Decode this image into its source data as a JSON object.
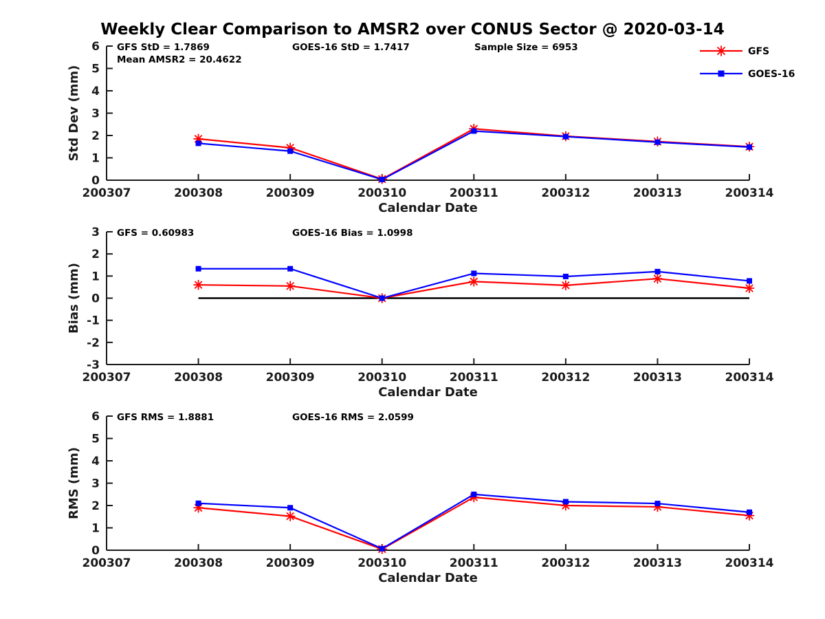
{
  "title": "Weekly Clear Comparison to AMSR2 over CONUS Sector @ 2020-03-14",
  "x_axis_label": "Calendar Date",
  "x_tick_labels": [
    "200307",
    "200308",
    "200309",
    "200310",
    "200311",
    "200312",
    "200313",
    "200314"
  ],
  "colors": {
    "gfs": "#ff0000",
    "goes16": "#0000ff",
    "axis": "#1a1a1a",
    "text": "#000000",
    "zero_line": "#000000"
  },
  "legend": {
    "entries": [
      {
        "label": "GFS",
        "color": "#ff0000",
        "marker": "asterisk"
      },
      {
        "label": "GOES-16",
        "color": "#0000ff",
        "marker": "square"
      }
    ]
  },
  "chart_data": [
    {
      "name": "std-dev",
      "type": "line",
      "ylabel": "Std Dev (mm)",
      "xlabel": "Calendar Date",
      "ylim": [
        0,
        6
      ],
      "yticks": [
        0,
        1,
        2,
        3,
        4,
        5,
        6
      ],
      "x": [
        "200308",
        "200309",
        "200310",
        "200311",
        "200312",
        "200313",
        "200314"
      ],
      "series": [
        {
          "name": "GFS",
          "color": "#ff0000",
          "marker": "asterisk",
          "values": [
            1.85,
            1.45,
            0.05,
            2.3,
            1.97,
            1.73,
            1.5
          ]
        },
        {
          "name": "GOES-16",
          "color": "#0000ff",
          "marker": "square",
          "values": [
            1.65,
            1.3,
            0.03,
            2.2,
            1.95,
            1.7,
            1.48
          ]
        }
      ],
      "annotations": [
        {
          "text": "GFS StD = 1.7869",
          "col": 0,
          "row": 0
        },
        {
          "text": "Mean AMSR2 = 20.4622",
          "col": 0,
          "row": 1
        },
        {
          "text": "GOES-16 StD = 1.7417",
          "col": 1,
          "row": 0
        },
        {
          "text": "Sample Size = 6953",
          "col": 2,
          "row": 0
        }
      ],
      "show_legend": true,
      "zero_line": false
    },
    {
      "name": "bias",
      "type": "line",
      "ylabel": "Bias (mm)",
      "xlabel": "Calendar Date",
      "ylim": [
        -3,
        3
      ],
      "yticks": [
        -3,
        -2,
        -1,
        0,
        1,
        2,
        3
      ],
      "x": [
        "200308",
        "200309",
        "200310",
        "200311",
        "200312",
        "200313",
        "200314"
      ],
      "series": [
        {
          "name": "GFS",
          "color": "#ff0000",
          "marker": "asterisk",
          "values": [
            0.6,
            0.55,
            0.0,
            0.75,
            0.58,
            0.88,
            0.45
          ]
        },
        {
          "name": "GOES-16",
          "color": "#0000ff",
          "marker": "square",
          "values": [
            1.33,
            1.33,
            0.0,
            1.12,
            0.98,
            1.2,
            0.78
          ]
        }
      ],
      "annotations": [
        {
          "text": "GFS = 0.60983",
          "col": 0,
          "row": 0
        },
        {
          "text": "GOES-16 Bias = 1.0998",
          "col": 1,
          "row": 0
        }
      ],
      "show_legend": false,
      "zero_line": true
    },
    {
      "name": "rms",
      "type": "line",
      "ylabel": "RMS (mm)",
      "xlabel": "Calendar Date",
      "ylim": [
        0,
        6
      ],
      "yticks": [
        0,
        1,
        2,
        3,
        4,
        5,
        6
      ],
      "x": [
        "200308",
        "200309",
        "200310",
        "200311",
        "200312",
        "200313",
        "200314"
      ],
      "series": [
        {
          "name": "GFS",
          "color": "#ff0000",
          "marker": "asterisk",
          "values": [
            1.9,
            1.52,
            0.05,
            2.37,
            2.0,
            1.94,
            1.55
          ]
        },
        {
          "name": "GOES-16",
          "color": "#0000ff",
          "marker": "square",
          "values": [
            2.1,
            1.9,
            0.07,
            2.5,
            2.17,
            2.09,
            1.7
          ]
        }
      ],
      "annotations": [
        {
          "text": "GFS RMS = 1.8881",
          "col": 0,
          "row": 0
        },
        {
          "text": "GOES-16 RMS = 2.0599",
          "col": 1,
          "row": 0
        }
      ],
      "show_legend": false,
      "zero_line": false
    }
  ]
}
